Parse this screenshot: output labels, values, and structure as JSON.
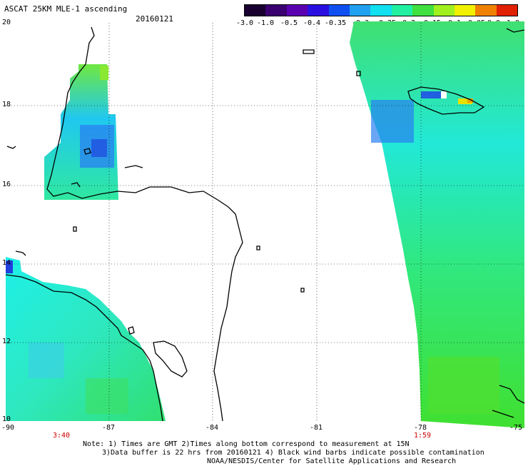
{
  "header": {
    "title": "ASCAT 25KM MLE-1 ascending",
    "date": "20160121"
  },
  "colorbar": {
    "labels": [
      "-3.0",
      "-1.0",
      "-0.5",
      "-0.4",
      "-0.35",
      "-0.3",
      "-0.25",
      "-0.2",
      "-0.15",
      "-0.1",
      "-0.05",
      "0.0",
      "1.0"
    ],
    "colors": [
      "#1a0030",
      "#3a0070",
      "#5a00b0",
      "#2a10e0",
      "#1050f0",
      "#20a0f0",
      "#10e0f0",
      "#20f0a0",
      "#40e040",
      "#a0f020",
      "#f0f000",
      "#f08000",
      "#e02000"
    ]
  },
  "axes": {
    "lat_labels": [
      "20",
      "18",
      "16",
      "14",
      "12",
      "10"
    ],
    "lon_labels": [
      "-90",
      "-87",
      "-84",
      "-81",
      "-78",
      "-75"
    ]
  },
  "times": {
    "left": "3:40",
    "right": "1:59"
  },
  "notes": {
    "line1": "Note: 1) Times are GMT 2)Times along bottom correspond to measurement at 15N",
    "line2": "3)Data buffer is 22 hrs from 20160121 4) Black wind barbs indicate possible contamination",
    "line3": "NOAA/NESDIS/Center for Satellite Applications and Research"
  },
  "colors": {
    "swath_green": "#3ee860",
    "swath_cyan": "#1ef0e8",
    "swath_blue": "#2a70f0"
  }
}
